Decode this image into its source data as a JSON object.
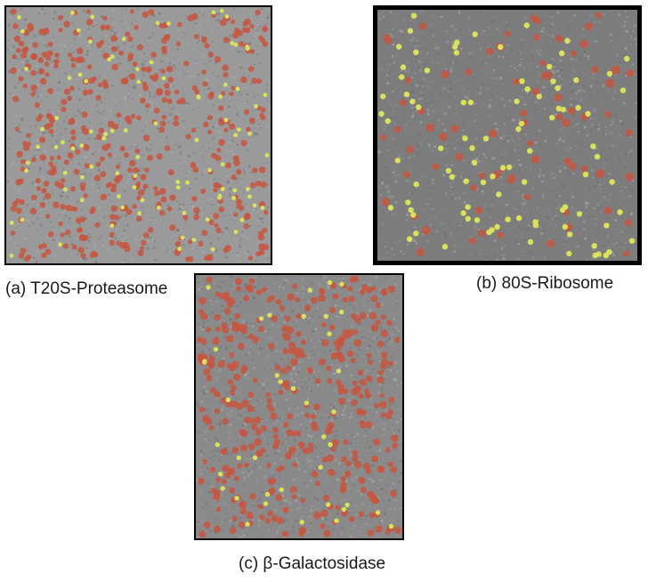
{
  "figure": {
    "panels": [
      {
        "id": "a",
        "caption": "(a) T20S-Proteasome",
        "background": "#9a9a9a",
        "red_markers": 430,
        "yellow_markers": 95,
        "marker_radius": 3.2
      },
      {
        "id": "b",
        "caption": "(b) 80S-Ribosome",
        "background": "#7d7d7d",
        "red_markers": 75,
        "yellow_markers": 95,
        "marker_radius": 4.2
      },
      {
        "id": "c",
        "caption": "(c) β-Galactosidase",
        "background": "#8a8a8a",
        "red_markers": 360,
        "yellow_markers": 40,
        "marker_radius": 3.6
      }
    ],
    "colors": {
      "red_marker": "#c8553f",
      "yellow_marker": "#d9e25a",
      "noise_light": "#b0b0b0",
      "noise_dark": "#6e6e6e"
    }
  }
}
